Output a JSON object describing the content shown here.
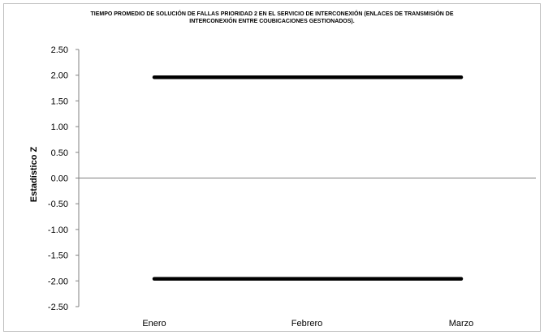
{
  "chart_data": {
    "type": "line",
    "title": "TIEMPO PROMEDIO DE SOLUCIÓN DE FALLAS PRIORIDAD 2 EN EL SERVICIO DE INTERCONEXIÓN (ENLACES DE TRANSMISIÓN DE INTERCONEXIÓN ENTRE COUBICACIONES GESTIONADOS).",
    "xlabel": "",
    "ylabel": "Estadístico Z",
    "categories": [
      "Enero",
      "Febrero",
      "Marzo"
    ],
    "ylim": [
      -2.5,
      2.5
    ],
    "yticks": [
      "2.50",
      "2.00",
      "1.50",
      "1.00",
      "0.50",
      "0.00",
      "-0.50",
      "-1.00",
      "-1.50",
      "-2.00",
      "-2.50"
    ],
    "series": [
      {
        "values": [
          1.96,
          1.96,
          1.96
        ],
        "color": "#000000"
      },
      {
        "values": [
          -1.96,
          -1.96,
          -1.96
        ],
        "color": "#000000"
      }
    ],
    "grid": false,
    "legend": "none"
  }
}
